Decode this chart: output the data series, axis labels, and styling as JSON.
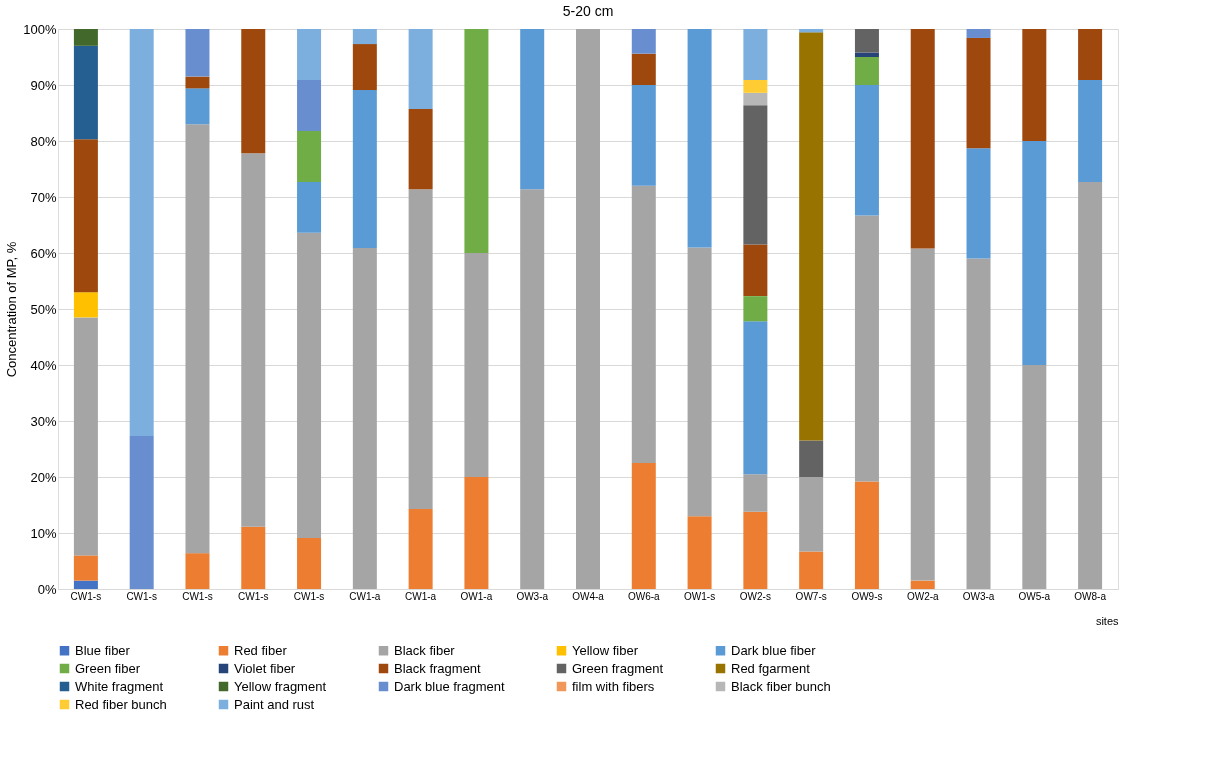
{
  "chart_data": {
    "type": "bar",
    "stacked": true,
    "title": "5-20 cm",
    "xlabel": "sites",
    "ylabel": "Concentration of MP, %",
    "categories": [
      "CW1-s",
      "CW1-s",
      "CW1-s",
      "CW1-s",
      "CW1-s",
      "CW1-a",
      "CW1-a",
      "OW1-a",
      "OW3-a",
      "OW4-a",
      "OW6-a",
      "OW1-s",
      "OW2-s",
      "OW7-s",
      "OW9-s",
      "OW2-a",
      "OW3-a",
      "OW5-a",
      "OW8-a"
    ],
    "ylim": [
      0,
      100
    ],
    "yticks": [
      {
        "value": 0,
        "label": "0%"
      },
      {
        "value": 10,
        "label": "10%"
      },
      {
        "value": 20,
        "label": "20%"
      },
      {
        "value": 30,
        "label": "30%"
      },
      {
        "value": 40,
        "label": "40%"
      },
      {
        "value": 50,
        "label": "50%"
      },
      {
        "value": 60,
        "label": "60%"
      },
      {
        "value": 70,
        "label": "70%"
      },
      {
        "value": 80,
        "label": "80%"
      },
      {
        "value": 90,
        "label": "90%"
      },
      {
        "value": 100,
        "label": "100%"
      }
    ],
    "grid": "y",
    "legend": "bottom",
    "series": [
      {
        "name": "Blue fiber",
        "color": "#4472c4",
        "values": [
          1.5,
          null,
          null,
          null,
          null,
          null,
          null,
          null,
          null,
          null,
          null,
          null,
          null,
          null,
          null,
          null,
          null,
          null,
          null
        ]
      },
      {
        "name": "Red fiber",
        "color": "#ed7d31",
        "values": [
          4.5,
          null,
          6.4,
          11.1,
          9.1,
          null,
          14.3,
          20,
          null,
          null,
          22.5,
          13,
          13.8,
          6.7,
          19.2,
          1.5,
          null,
          null,
          null
        ]
      },
      {
        "name": "Black fiber",
        "color": "#a5a5a5",
        "values": [
          42.5,
          null,
          76.6,
          66.7,
          54.5,
          60.9,
          57.1,
          40,
          71.4,
          100,
          49.5,
          48,
          6.7,
          13.3,
          47.5,
          59.3,
          59,
          40,
          72.7
        ]
      },
      {
        "name": "Yellow fiber",
        "color": "#ffc000",
        "values": [
          4.5,
          null,
          null,
          null,
          null,
          null,
          null,
          null,
          null,
          null,
          null,
          null,
          null,
          null,
          null,
          null,
          null,
          null,
          null
        ]
      },
      {
        "name": "Dark blue fiber",
        "color": "#5b9bd5",
        "values": [
          null,
          null,
          6.4,
          null,
          9.1,
          28.2,
          null,
          null,
          28.6,
          null,
          18,
          39,
          27.3,
          null,
          23.3,
          null,
          19.7,
          40,
          18.2
        ]
      },
      {
        "name": "Green fiber",
        "color": "#70ad47",
        "values": [
          null,
          null,
          null,
          null,
          9.1,
          null,
          null,
          40,
          null,
          null,
          null,
          null,
          4.5,
          null,
          5,
          null,
          null,
          null,
          null
        ]
      },
      {
        "name": "Violet fiber",
        "color": "#264478",
        "values": [
          null,
          null,
          null,
          null,
          null,
          null,
          null,
          null,
          null,
          null,
          null,
          null,
          null,
          null,
          0.8,
          null,
          null,
          null,
          null
        ]
      },
      {
        "name": "Black fragment",
        "color": "#9e480e",
        "values": [
          27.3,
          null,
          2.1,
          22.2,
          null,
          8.2,
          14.3,
          null,
          null,
          null,
          5.6,
          null,
          9.2,
          null,
          null,
          39.2,
          19.7,
          20,
          9.1
        ]
      },
      {
        "name": "Green fragment",
        "color": "#636363",
        "values": [
          null,
          null,
          null,
          null,
          null,
          null,
          null,
          null,
          null,
          null,
          null,
          null,
          24.9,
          6.5,
          4.2,
          null,
          null,
          null,
          null
        ]
      },
      {
        "name": "Red fgarment",
        "color": "#997300",
        "values": [
          null,
          null,
          null,
          null,
          null,
          null,
          null,
          null,
          null,
          null,
          null,
          null,
          null,
          72.9,
          null,
          null,
          null,
          null,
          null
        ]
      },
      {
        "name": "White fragment",
        "color": "#255e91",
        "values": [
          16.7,
          null,
          null,
          null,
          null,
          null,
          null,
          null,
          null,
          null,
          null,
          null,
          null,
          null,
          null,
          null,
          null,
          null,
          null
        ]
      },
      {
        "name": "Yellow fragment",
        "color": "#43682b",
        "values": [
          3,
          null,
          null,
          null,
          null,
          null,
          null,
          null,
          null,
          null,
          null,
          null,
          null,
          null,
          null,
          null,
          null,
          null,
          null
        ]
      },
      {
        "name": "Dark blue fragment",
        "color": "#698ed0",
        "values": [
          null,
          27.3,
          8.5,
          null,
          9.1,
          null,
          null,
          null,
          null,
          null,
          4.4,
          null,
          null,
          null,
          null,
          null,
          1.6,
          null,
          null
        ]
      },
      {
        "name": "film with fibers",
        "color": "#f1975a",
        "values": [
          null,
          null,
          null,
          null,
          null,
          null,
          null,
          null,
          null,
          null,
          null,
          null,
          null,
          null,
          null,
          null,
          null,
          null,
          null
        ]
      },
      {
        "name": "Black fiber bunch",
        "color": "#b7b7b7",
        "values": [
          null,
          null,
          null,
          null,
          null,
          null,
          null,
          null,
          null,
          null,
          null,
          null,
          2.2,
          null,
          null,
          null,
          null,
          null,
          null
        ]
      },
      {
        "name": "Red fiber bunch",
        "color": "#ffcd33",
        "values": [
          null,
          null,
          null,
          null,
          null,
          null,
          null,
          null,
          null,
          null,
          null,
          null,
          2.3,
          null,
          null,
          null,
          null,
          null,
          null
        ]
      },
      {
        "name": "Paint and rust",
        "color": "#7cafdd",
        "values": [
          null,
          72.7,
          null,
          null,
          9.1,
          2.7,
          14.3,
          null,
          null,
          null,
          null,
          null,
          9.1,
          0.6,
          null,
          null,
          null,
          null,
          null
        ]
      }
    ]
  }
}
